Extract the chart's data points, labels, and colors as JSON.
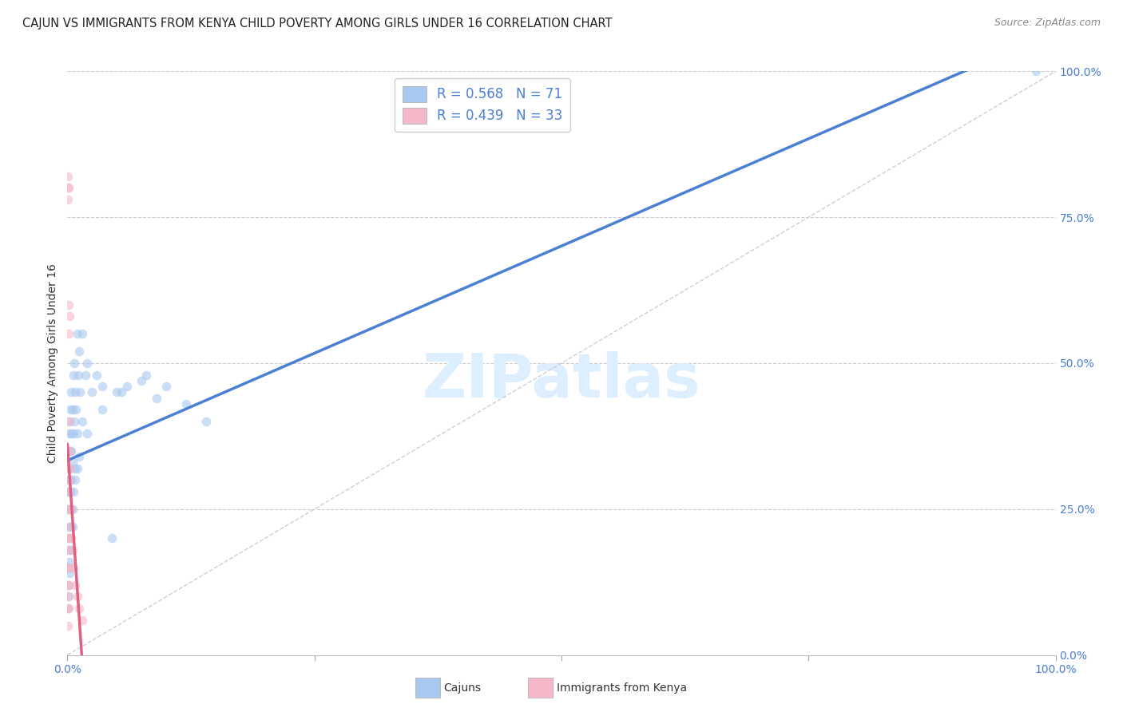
{
  "title": "CAJUN VS IMMIGRANTS FROM KENYA CHILD POVERTY AMONG GIRLS UNDER 16 CORRELATION CHART",
  "source": "Source: ZipAtlas.com",
  "ylabel": "Child Poverty Among Girls Under 16",
  "cajun_R": 0.568,
  "cajun_N": 71,
  "kenya_R": 0.439,
  "kenya_N": 33,
  "cajun_color": "#a8c8f0",
  "kenya_color": "#f5b8c8",
  "cajun_line_color": "#4a7fd4",
  "kenya_line_color": "#e06080",
  "identity_line_color": "#c8c8d8",
  "watermark": "ZIPatlas",
  "watermark_color": "#ddeeff",
  "legend_label_cajun": "Cajuns",
  "legend_label_kenya": "Immigrants from Kenya",
  "background_color": "#ffffff",
  "marker_size": 70,
  "marker_alpha": 0.6,
  "cajun_x": [
    0.05,
    0.05,
    0.1,
    0.1,
    0.1,
    0.1,
    0.15,
    0.15,
    0.15,
    0.2,
    0.2,
    0.2,
    0.2,
    0.25,
    0.25,
    0.3,
    0.3,
    0.3,
    0.3,
    0.35,
    0.35,
    0.4,
    0.4,
    0.4,
    0.5,
    0.5,
    0.5,
    0.6,
    0.6,
    0.7,
    0.7,
    0.8,
    0.8,
    0.9,
    1.0,
    1.0,
    1.1,
    1.2,
    1.3,
    1.5,
    1.5,
    1.8,
    2.0,
    2.5,
    3.0,
    3.5,
    4.5,
    5.0,
    6.0,
    7.5,
    9.0,
    10.0,
    12.0,
    14.0,
    0.05,
    0.1,
    0.15,
    0.2,
    0.25,
    0.3,
    0.4,
    0.5,
    0.6,
    0.8,
    1.0,
    1.2,
    2.0,
    3.5,
    5.5,
    8.0,
    98.0
  ],
  "cajun_y": [
    25.0,
    30.0,
    28.0,
    32.0,
    20.0,
    15.0,
    35.0,
    28.0,
    22.0,
    38.0,
    30.0,
    25.0,
    18.0,
    40.0,
    32.0,
    42.0,
    35.0,
    28.0,
    20.0,
    38.0,
    30.0,
    45.0,
    35.0,
    25.0,
    42.0,
    33.0,
    22.0,
    48.0,
    38.0,
    50.0,
    40.0,
    45.0,
    32.0,
    42.0,
    55.0,
    38.0,
    48.0,
    52.0,
    45.0,
    55.0,
    40.0,
    48.0,
    50.0,
    45.0,
    48.0,
    46.0,
    20.0,
    45.0,
    46.0,
    47.0,
    44.0,
    46.0,
    43.0,
    40.0,
    8.0,
    10.0,
    12.0,
    14.0,
    16.0,
    18.0,
    22.0,
    25.0,
    28.0,
    30.0,
    32.0,
    34.0,
    38.0,
    42.0,
    45.0,
    48.0,
    100.0
  ],
  "kenya_x": [
    0.02,
    0.02,
    0.03,
    0.03,
    0.04,
    0.05,
    0.05,
    0.05,
    0.07,
    0.07,
    0.08,
    0.1,
    0.1,
    0.1,
    0.12,
    0.12,
    0.15,
    0.15,
    0.15,
    0.18,
    0.2,
    0.2,
    0.25,
    0.3,
    0.3,
    0.35,
    0.4,
    0.5,
    0.6,
    0.8,
    1.0,
    1.2,
    1.5
  ],
  "kenya_y": [
    80.0,
    82.0,
    15.0,
    12.0,
    8.0,
    78.0,
    20.0,
    10.0,
    25.0,
    18.0,
    5.0,
    80.0,
    30.0,
    12.0,
    60.0,
    20.0,
    55.0,
    28.0,
    8.0,
    35.0,
    58.0,
    22.0,
    40.0,
    32.0,
    15.0,
    25.0,
    20.0,
    18.0,
    15.0,
    12.0,
    10.0,
    8.0,
    6.0
  ]
}
